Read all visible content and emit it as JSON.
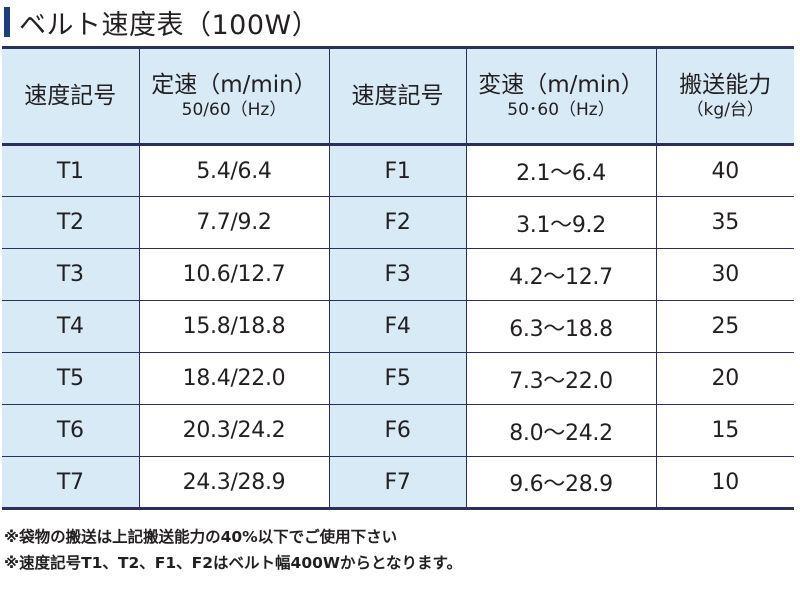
{
  "title": "ベルト速度表（100W）",
  "table": {
    "headers": [
      {
        "main": "速度記号",
        "sub": ""
      },
      {
        "main": "定速（m/min）",
        "sub": "50/60（Hz）"
      },
      {
        "main": "速度記号",
        "sub": ""
      },
      {
        "main": "変速（m/min）",
        "sub": "50･60（Hz）"
      },
      {
        "main": "搬送能力",
        "sub": "（kg/台）"
      }
    ],
    "rows": [
      [
        "T1",
        "5.4/6.4",
        "F1",
        "2.1〜6.4",
        "40"
      ],
      [
        "T2",
        "7.7/9.2",
        "F2",
        "3.1〜9.2",
        "35"
      ],
      [
        "T3",
        "10.6/12.7",
        "F3",
        "4.2〜12.7",
        "30"
      ],
      [
        "T4",
        "15.8/18.8",
        "F4",
        "6.3〜18.8",
        "25"
      ],
      [
        "T5",
        "18.4/22.0",
        "F5",
        "7.3〜22.0",
        "20"
      ],
      [
        "T6",
        "20.3/24.2",
        "F6",
        "8.0〜24.2",
        "15"
      ],
      [
        "T7",
        "24.3/28.9",
        "F7",
        "9.6〜28.9",
        "10"
      ]
    ]
  },
  "notes": [
    "※袋物の搬送は上記搬送能力の40%以下でご使用下さい",
    "※速度記号T1、T2、F1、F2はベルト幅400Wからとなります。"
  ],
  "colors": {
    "header_bg": "#d8eaf6",
    "border": "#2b2f5a",
    "title_bar": "#1b3f7a"
  }
}
